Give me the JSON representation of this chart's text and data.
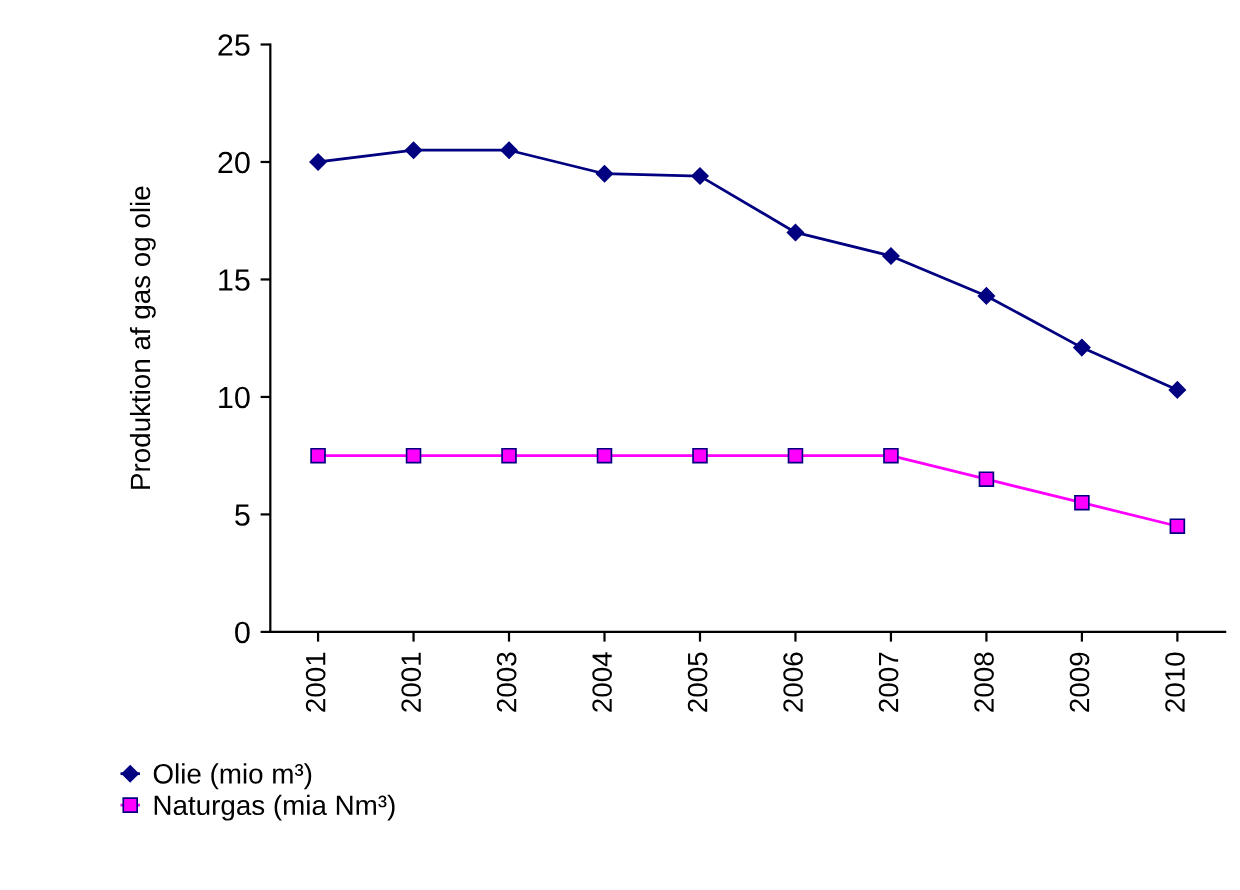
{
  "chart_data": {
    "type": "line",
    "ylabel": "Produktion af gas og olie",
    "categories": [
      "2001",
      "2001",
      "2003",
      "2004",
      "2005",
      "2006",
      "2007",
      "2008",
      "2009",
      "2010"
    ],
    "series": [
      {
        "name": "Olie (mio m³)",
        "color": "#000080",
        "marker": "diamond",
        "values": [
          20,
          20.5,
          20.5,
          19.5,
          19.4,
          17,
          16,
          14.3,
          12.1,
          10.3
        ]
      },
      {
        "name": "Naturgas (mia Nm³)",
        "color": "#ff00ff",
        "marker": "square",
        "values": [
          7.5,
          7.5,
          7.5,
          7.5,
          7.5,
          7.5,
          7.5,
          6.5,
          5.5,
          4.5
        ]
      }
    ],
    "ylim": [
      0,
      25
    ],
    "yticks": [
      0,
      5,
      10,
      15,
      20,
      25
    ],
    "grid": false,
    "legend": "bottom left",
    "line_style": "solid"
  }
}
